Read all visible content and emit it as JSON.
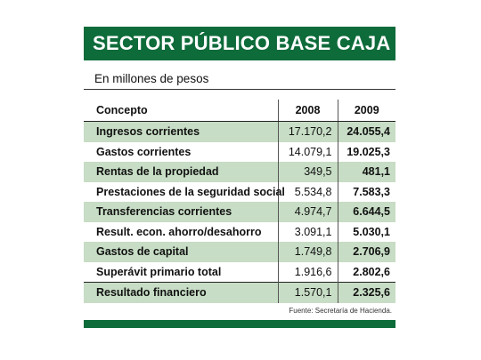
{
  "title": "SECTOR PÚBLICO BASE CAJA",
  "subtitle": "En millones de pesos",
  "table": {
    "headers": [
      "Concepto",
      "2008",
      "2009"
    ],
    "rows": [
      {
        "concepto": "Ingresos corrientes",
        "y2008": "17.170,2",
        "y2009": "24.055,4"
      },
      {
        "concepto": "Gastos corrientes",
        "y2008": "14.079,1",
        "y2009": "19.025,3"
      },
      {
        "concepto": "Rentas de la propiedad",
        "y2008": "349,5",
        "y2009": "481,1"
      },
      {
        "concepto": "Prestaciones de la seguridad social",
        "y2008": "5.534,8",
        "y2009": "7.583,3"
      },
      {
        "concepto": "Transferencias corrientes",
        "y2008": "4.974,7",
        "y2009": "6.644,5"
      },
      {
        "concepto": "Result. econ. ahorro/desahorro",
        "y2008": "3.091,1",
        "y2009": "5.030,1"
      },
      {
        "concepto": "Gastos de capital",
        "y2008": "1.749,8",
        "y2009": "2.706,9"
      },
      {
        "concepto": "Superávit primario total",
        "y2008": "1.916,6",
        "y2009": "2.802,6"
      },
      {
        "concepto": "Resultado financiero",
        "y2008": "1.570,1",
        "y2009": "2.325,6"
      }
    ]
  },
  "source": "Fuente: Secretaría de Hacienda.",
  "colors": {
    "brand_green": "#0e6b3a",
    "row_shade": "#c7ddc5"
  }
}
